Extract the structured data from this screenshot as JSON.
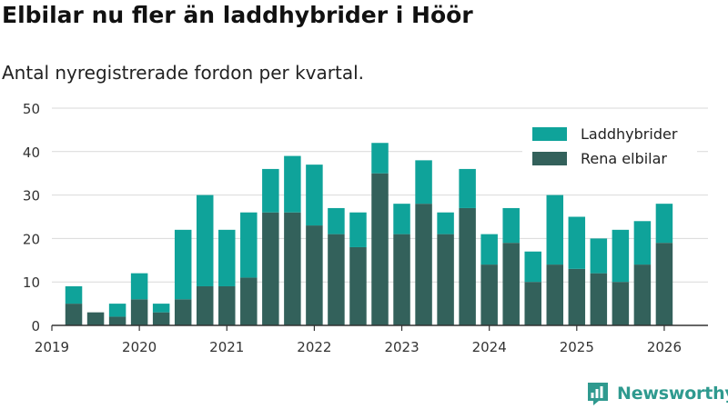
{
  "colors": {
    "rena": "#33615b",
    "hybrid": "#0fa39a",
    "grid": "#d9d9d9",
    "axis": "#333333",
    "brand": "#2f9a8f"
  },
  "brand": {
    "name": "Newsworthy",
    "icon": "bar-chart-logo-icon"
  },
  "chart_data": {
    "type": "bar",
    "stacked": true,
    "title": "Elbilar nu fler än laddhybrider i Höör",
    "subtitle": "Antal nyregistrerade fordon per kvartal.",
    "xlabel": "",
    "ylabel": "",
    "ylim": [
      0,
      50
    ],
    "yticks": [
      0,
      10,
      20,
      30,
      40,
      50
    ],
    "xlim": [
      2019.0,
      2026.5
    ],
    "xticks": [
      "2019",
      "2020",
      "2021",
      "2022",
      "2023",
      "2024",
      "2025",
      "2026"
    ],
    "grid": true,
    "legend_position": "top-right",
    "categories": [
      "2019 Q2",
      "2019 Q3",
      "2019 Q4",
      "2020 Q1",
      "2020 Q2",
      "2020 Q3",
      "2020 Q4",
      "2021 Q1",
      "2021 Q2",
      "2021 Q3",
      "2021 Q4",
      "2022 Q1",
      "2022 Q2",
      "2022 Q3",
      "2022 Q4",
      "2023 Q1",
      "2023 Q2",
      "2023 Q3",
      "2023 Q4",
      "2024 Q1",
      "2024 Q2",
      "2024 Q3",
      "2024 Q4",
      "2025 Q1",
      "2025 Q2",
      "2025 Q3",
      "2025 Q4",
      "2026 Q1"
    ],
    "x": [
      2019.25,
      2019.5,
      2019.75,
      2020.0,
      2020.25,
      2020.5,
      2020.75,
      2021.0,
      2021.25,
      2021.5,
      2021.75,
      2022.0,
      2022.25,
      2022.5,
      2022.75,
      2023.0,
      2023.25,
      2023.5,
      2023.75,
      2024.0,
      2024.25,
      2024.5,
      2024.75,
      2025.0,
      2025.25,
      2025.5,
      2025.75,
      2026.0
    ],
    "series": [
      {
        "name": "Rena elbilar",
        "color_key": "rena",
        "values": [
          5,
          3,
          2,
          6,
          3,
          6,
          9,
          9,
          11,
          26,
          26,
          23,
          21,
          18,
          35,
          21,
          28,
          21,
          27,
          14,
          19,
          10,
          14,
          13,
          12,
          10,
          14,
          19
        ]
      },
      {
        "name": "Laddhybrider",
        "color_key": "hybrid",
        "values": [
          4,
          0,
          3,
          6,
          2,
          16,
          21,
          13,
          15,
          10,
          13,
          14,
          6,
          8,
          7,
          7,
          10,
          5,
          9,
          7,
          8,
          7,
          16,
          12,
          8,
          12,
          10,
          9
        ]
      }
    ],
    "legend": [
      {
        "label": "Laddhybrider",
        "color_key": "hybrid"
      },
      {
        "label": "Rena elbilar",
        "color_key": "rena"
      }
    ]
  }
}
